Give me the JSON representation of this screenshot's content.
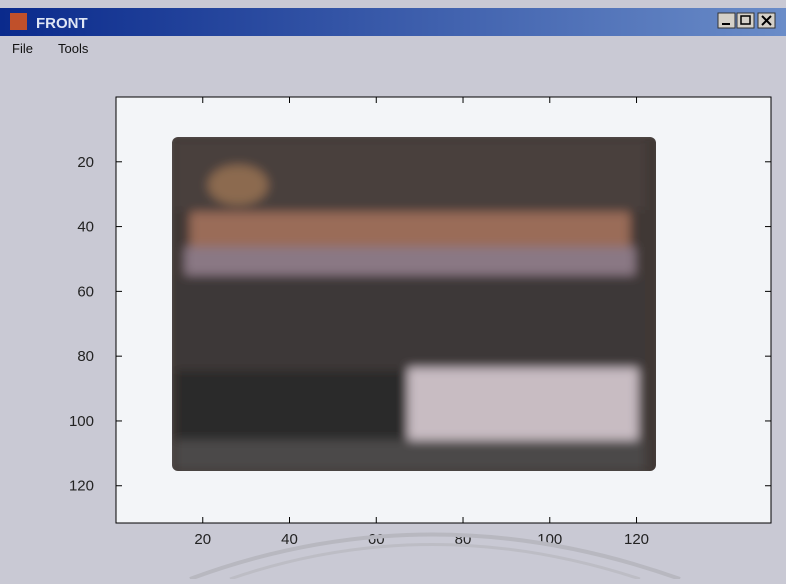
{
  "window": {
    "title": "FRONT"
  },
  "menu": [
    "File",
    "Tools"
  ],
  "axes": {
    "xlim": [
      0,
      151
    ],
    "ylim": [
      0,
      131.5
    ],
    "y_reversed": true,
    "xticks": [
      20,
      40,
      60,
      80,
      100,
      120
    ],
    "yticks": [
      20,
      40,
      60,
      80,
      100,
      120
    ]
  }
}
